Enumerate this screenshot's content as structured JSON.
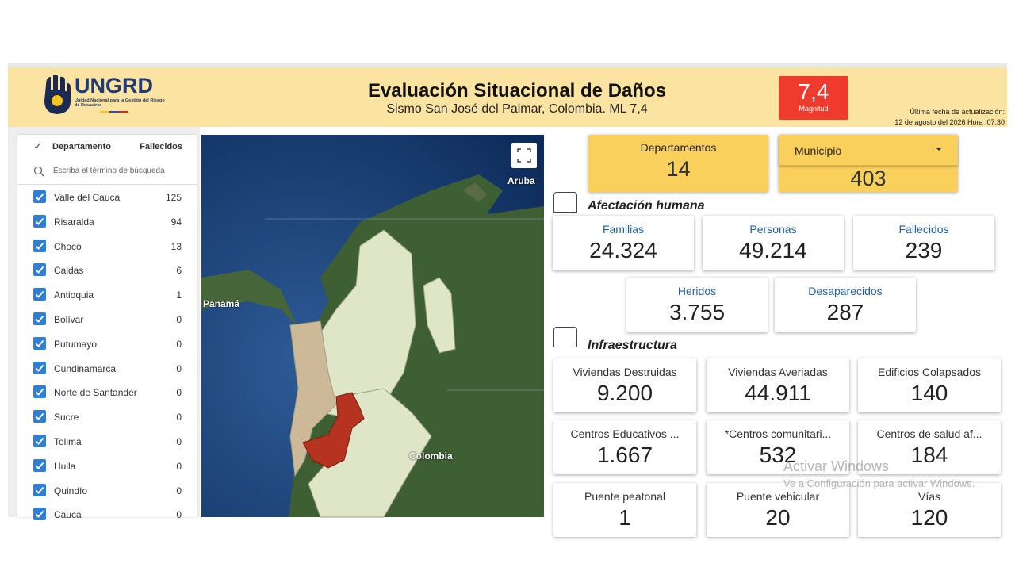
{
  "header": {
    "logo_name": "UNGRD",
    "logo_subtitle": "Unidad Nacional para la Gestión del Riesgo de Desastres",
    "title": "Evaluación Situacional de Daños",
    "subtitle": "Sismo San José del Palmar, Colombia. ML 7,4",
    "magnitude": "7,4",
    "magnitude_label": "Magnitud",
    "update_label": "Última fecha de actualización:",
    "update_date": "12 de agosto del 2026 Hora  07:30"
  },
  "filter": {
    "column_department": "Departamento",
    "column_deaths": "Fallecidos",
    "search_placeholder": "Escriba el término de búsqueda",
    "rows": [
      [
        "Valle del Cauca",
        "125"
      ],
      [
        "Risaralda",
        "94"
      ],
      [
        "Chocó",
        "13"
      ],
      [
        "Caldas",
        "6"
      ],
      [
        "Antioquia",
        "1"
      ],
      [
        "Bolívar",
        "0"
      ],
      [
        "Putumayo",
        "0"
      ],
      [
        "Cundinamarca",
        "0"
      ],
      [
        "Norte de Santander",
        "0"
      ],
      [
        "Sucre",
        "0"
      ],
      [
        "Tolima",
        "0"
      ],
      [
        "Huila",
        "0"
      ],
      [
        "Quindío",
        "0"
      ],
      [
        "Cauca",
        "0"
      ]
    ]
  },
  "map": {
    "labels": [
      "Aruba",
      "Panamá",
      "Colombia"
    ]
  },
  "summary": {
    "departments": {
      "label": "Departamentos",
      "value": "14"
    },
    "municipality": {
      "label": "Municipio",
      "value": "403"
    }
  },
  "human": {
    "title": "Afectación humana",
    "cards": [
      [
        "Familias",
        "24.324"
      ],
      [
        "Personas",
        "49.214"
      ],
      [
        "Fallecidos",
        "239"
      ],
      [
        "Heridos",
        "3.755"
      ],
      [
        "Desaparecidos",
        "287"
      ]
    ]
  },
  "infrastructure": {
    "title": "Infraestructura",
    "cards": [
      [
        "Viviendas Destruidas",
        "9.200"
      ],
      [
        "Viviendas Averiadas",
        "44.911"
      ],
      [
        "Edificios Colapsados",
        "140"
      ],
      [
        "Centros Educativos ...",
        "1.667"
      ],
      [
        "*Centros comunitari...",
        "532"
      ],
      [
        "Centros de salud af...",
        "184"
      ],
      [
        "Puente peatonal",
        "1"
      ],
      [
        "Puente vehicular",
        "20"
      ],
      [
        "Vías",
        "120"
      ]
    ]
  },
  "watermark": {
    "title": "Activar Windows",
    "text": "Ve a Configuración para activar Windows."
  }
}
